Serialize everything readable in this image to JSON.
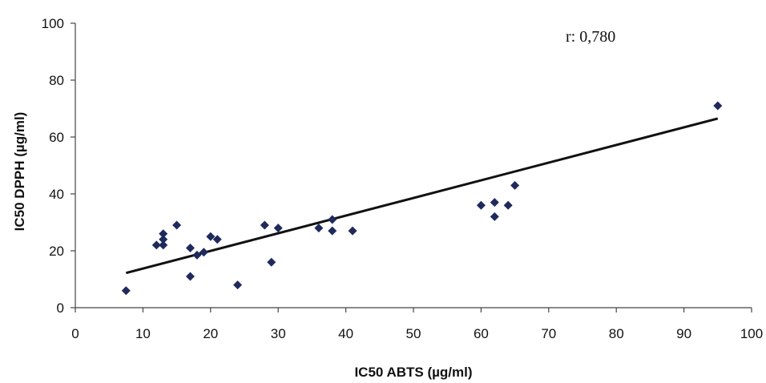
{
  "chart_data": {
    "type": "scatter",
    "xlabel": "IC50 ABTS (µg/ml)",
    "ylabel": "IC50 DPPH (µg/ml)",
    "xlim": [
      0,
      100
    ],
    "ylim": [
      0,
      100
    ],
    "x_ticks": [
      0,
      10,
      20,
      30,
      40,
      50,
      60,
      70,
      80,
      90,
      100
    ],
    "y_ticks": [
      0,
      20,
      40,
      60,
      80,
      100
    ],
    "grid": false,
    "legend": "none",
    "annotation": "r: 0,780",
    "marker": "diamond",
    "marker_color": "#1f2a5c",
    "line_color": "#111111",
    "points": [
      {
        "x": 7.5,
        "y": 6
      },
      {
        "x": 12,
        "y": 22
      },
      {
        "x": 13,
        "y": 22
      },
      {
        "x": 13,
        "y": 24
      },
      {
        "x": 13,
        "y": 26
      },
      {
        "x": 15,
        "y": 29
      },
      {
        "x": 17,
        "y": 21
      },
      {
        "x": 17,
        "y": 11
      },
      {
        "x": 18,
        "y": 18.5
      },
      {
        "x": 19,
        "y": 19.5
      },
      {
        "x": 20,
        "y": 25
      },
      {
        "x": 21,
        "y": 24
      },
      {
        "x": 24,
        "y": 8
      },
      {
        "x": 28,
        "y": 29
      },
      {
        "x": 29,
        "y": 16
      },
      {
        "x": 30,
        "y": 28
      },
      {
        "x": 36,
        "y": 28
      },
      {
        "x": 38,
        "y": 31
      },
      {
        "x": 38,
        "y": 27
      },
      {
        "x": 41,
        "y": 27
      },
      {
        "x": 60,
        "y": 36
      },
      {
        "x": 62,
        "y": 37
      },
      {
        "x": 62,
        "y": 32
      },
      {
        "x": 64,
        "y": 36
      },
      {
        "x": 65,
        "y": 43
      },
      {
        "x": 95,
        "y": 71
      }
    ],
    "trendline": {
      "x": [
        7.5,
        95
      ],
      "y": [
        12.2,
        66.5
      ]
    }
  }
}
